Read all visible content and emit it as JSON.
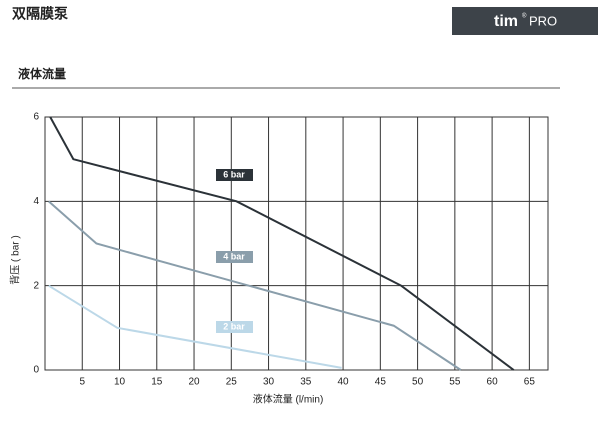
{
  "header": {
    "title": "双隔膜泵",
    "logo": {
      "brand": "tim",
      "mark": "®",
      "product": "PRO"
    }
  },
  "chart_data": {
    "type": "line",
    "title": "液体流量",
    "x_label": "液体流量 (l/min)",
    "y_label": "背压 ( bar )",
    "xlim": [
      0,
      67.5
    ],
    "xticks": [
      5,
      10,
      15,
      20,
      25,
      30,
      35,
      40,
      45,
      50,
      55,
      60,
      65
    ],
    "ylim": [
      0,
      6
    ],
    "yticks": [
      0,
      2,
      4,
      6
    ],
    "grid": true,
    "series": [
      {
        "name": "6 bar",
        "color": "#2b3238",
        "x": [
          0.7,
          3.8,
          25.7,
          47.8,
          62.9
        ],
        "values": [
          6,
          5,
          4,
          2,
          0
        ]
      },
      {
        "name": "4 bar",
        "color": "#8a9eab",
        "x": [
          0.5,
          6.9,
          46.8,
          55.8
        ],
        "values": [
          4,
          3,
          1.05,
          0
        ]
      },
      {
        "name": "2 bar",
        "color": "#bcd8e8",
        "x": [
          0.5,
          9.7,
          39.8
        ],
        "values": [
          2,
          1,
          0.05
        ]
      }
    ]
  }
}
